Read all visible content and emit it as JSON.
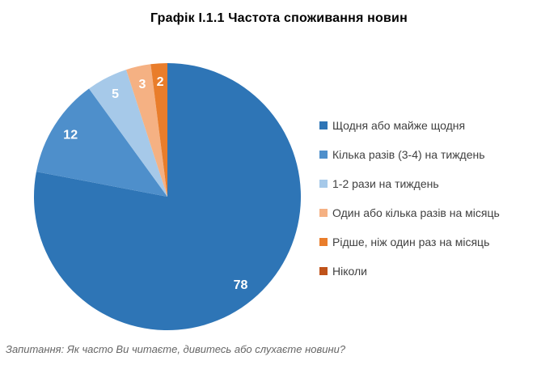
{
  "title": "Графік І.1.1 Частота споживання новин",
  "footer": "Запитання: Як часто Ви читаєте, дивитесь або слухаєте новини?",
  "chart_data": {
    "type": "pie",
    "title": "Графік І.1.1 Частота споживання новин",
    "categories": [
      "Щодня або майже щодня",
      "Кілька разів (3-4) на тиждень",
      "1-2 рази на тиждень",
      "Один або кілька разів на місяць",
      "Рідше, ніж один раз на місяць",
      "Ніколи"
    ],
    "values": [
      78,
      12,
      5,
      3,
      2,
      0
    ],
    "colors": [
      "#2E75B6",
      "#4E8FCB",
      "#A6C9E9",
      "#F5B183",
      "#E97D2B",
      "#C0531A"
    ],
    "data_label_color": "#FFFFFF",
    "legend_position": "right",
    "start_angle_deg": 0,
    "direction": "clockwise",
    "annotation": "Запитання: Як часто Ви читаєте, дивитесь або слухаєте новини?"
  }
}
